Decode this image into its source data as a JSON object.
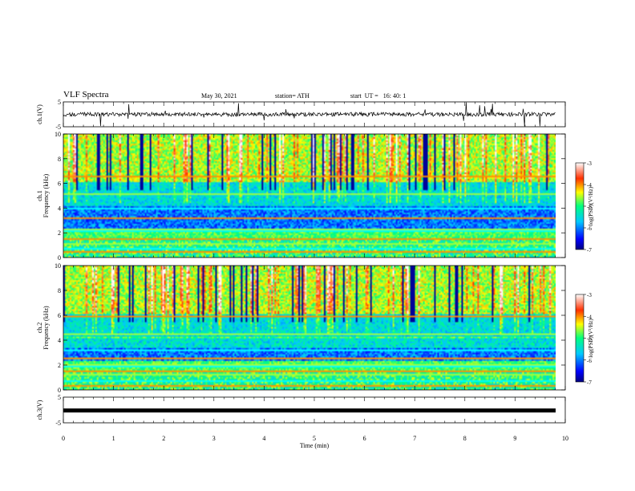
{
  "header": {
    "title": "VLF Spectra",
    "date": "May 30, 2021",
    "station": "station= ATH",
    "start": "start  UT =   16: 40: 1"
  },
  "chart_data": [
    {
      "type": "line",
      "panel": "ch1-waveform",
      "ylabel": "ch.1(V)",
      "ylim": [
        -5,
        5
      ],
      "y_ticks": [
        "5",
        "-5"
      ],
      "x_range": [
        0,
        10
      ]
    },
    {
      "type": "heatmap",
      "panel": "ch1-spectrogram",
      "ylabel": "ch.1",
      "ylabel2": "Frequency (kHz)",
      "ylim": [
        0,
        10
      ],
      "y_ticks": [
        "0",
        "2",
        "4",
        "6",
        "8",
        "10"
      ],
      "x_range": [
        0,
        10
      ],
      "colorbar": {
        "label": "log(PSD)(V²/Hz)",
        "range": [
          -7,
          -3
        ],
        "ticks": [
          "-3",
          "-4",
          "-5",
          "-6",
          "-7"
        ]
      }
    },
    {
      "type": "heatmap",
      "panel": "ch2-spectrogram",
      "ylabel": "ch.2",
      "ylabel2": "Frequency (kHz)",
      "ylim": [
        0,
        10
      ],
      "y_ticks": [
        "0",
        "2",
        "4",
        "6",
        "8",
        "10"
      ],
      "x_range": [
        0,
        10
      ],
      "colorbar": {
        "label": "log(PSD)(V²/Hz)",
        "range": [
          -7,
          -3
        ],
        "ticks": [
          "-3",
          "-4",
          "-5",
          "-6",
          "-7"
        ]
      }
    },
    {
      "type": "line",
      "panel": "ch3-waveform",
      "ylabel": "ch.3(V)",
      "ylim": [
        -5,
        5
      ],
      "y_ticks": [
        "5",
        "-5"
      ],
      "x_range": [
        0,
        10
      ],
      "xlabel": "Time  (min)",
      "x_ticks": [
        "0",
        "1",
        "2",
        "3",
        "4",
        "5",
        "6",
        "7",
        "8",
        "9",
        "10"
      ]
    }
  ]
}
